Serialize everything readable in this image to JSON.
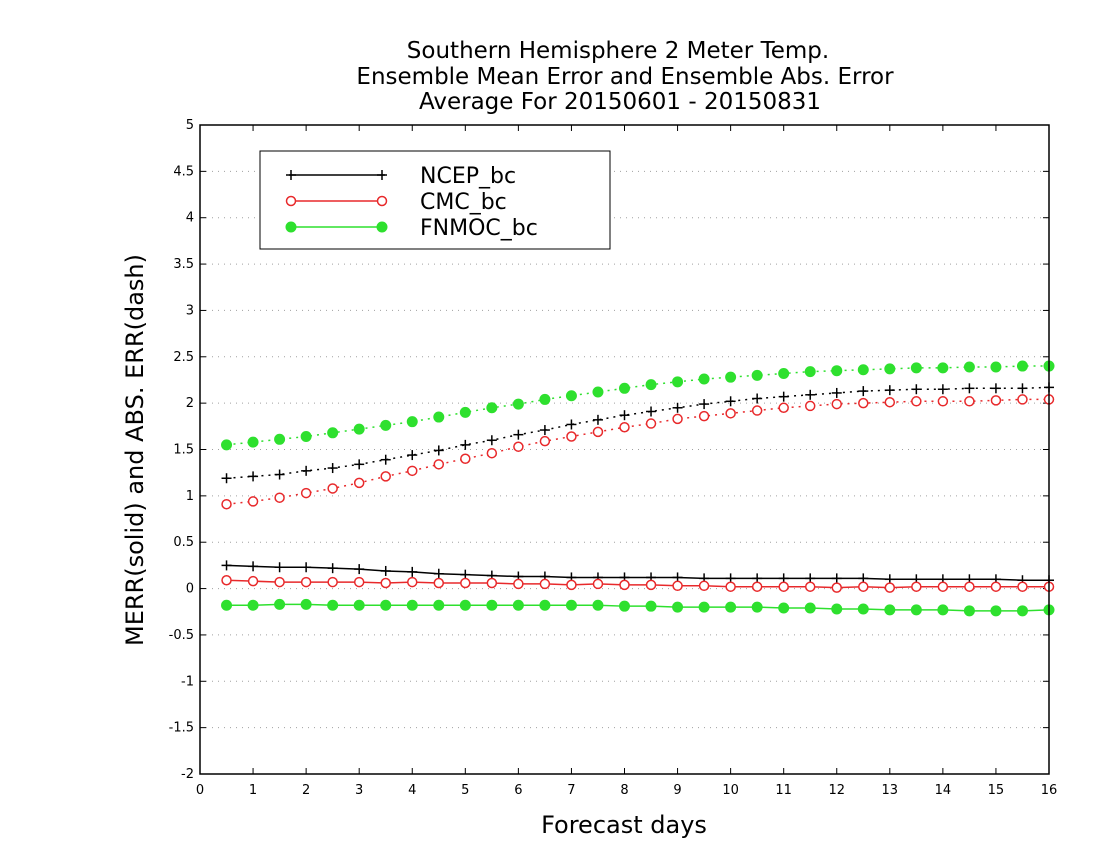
{
  "chart_data": {
    "type": "line",
    "title_lines": [
      "Southern Hemisphere 2 Meter Temp.",
      "Ensemble Mean Error and Ensemble Abs. Error",
      "Average For 20150601 - 20150831"
    ],
    "xlabel": "Forecast days",
    "ylabel": "MERR(solid) and ABS. ERR(dash)",
    "xlim": [
      0,
      16
    ],
    "ylim": [
      -2,
      5
    ],
    "x_ticks": [
      "0",
      "1",
      "2",
      "3",
      "4",
      "5",
      "6",
      "7",
      "8",
      "9",
      "10",
      "11",
      "12",
      "13",
      "14",
      "15",
      "16"
    ],
    "y_ticks": [
      "-2",
      "-1.5",
      "-1",
      "-0.5",
      "0",
      "0.5",
      "1",
      "1.5",
      "2",
      "2.5",
      "3",
      "3.5",
      "4",
      "4.5",
      "5"
    ],
    "grid": "horizontal dotted",
    "legend_position": "top-left",
    "x": [
      0.5,
      1,
      1.5,
      2,
      2.5,
      3,
      3.5,
      4,
      4.5,
      5,
      5.5,
      6,
      6.5,
      7,
      7.5,
      8,
      8.5,
      9,
      9.5,
      10,
      10.5,
      11,
      11.5,
      12,
      12.5,
      13,
      13.5,
      14,
      14.5,
      15,
      15.5,
      16
    ],
    "series": [
      {
        "name": "NCEP_bc",
        "color": "#000000",
        "marker": "plus",
        "merr": [
          0.25,
          0.24,
          0.23,
          0.23,
          0.22,
          0.21,
          0.19,
          0.18,
          0.16,
          0.15,
          0.14,
          0.13,
          0.13,
          0.12,
          0.12,
          0.12,
          0.12,
          0.12,
          0.11,
          0.11,
          0.11,
          0.11,
          0.11,
          0.11,
          0.11,
          0.1,
          0.1,
          0.1,
          0.1,
          0.1,
          0.09,
          0.09
        ],
        "abs_err": [
          1.19,
          1.21,
          1.23,
          1.27,
          1.3,
          1.34,
          1.39,
          1.44,
          1.49,
          1.55,
          1.6,
          1.66,
          1.71,
          1.77,
          1.82,
          1.87,
          1.91,
          1.95,
          1.99,
          2.02,
          2.05,
          2.07,
          2.09,
          2.11,
          2.13,
          2.14,
          2.15,
          2.15,
          2.16,
          2.16,
          2.16,
          2.17
        ]
      },
      {
        "name": "CMC_bc",
        "color": "#e8292b",
        "marker": "open-circle",
        "merr": [
          0.09,
          0.08,
          0.07,
          0.07,
          0.07,
          0.07,
          0.06,
          0.07,
          0.06,
          0.06,
          0.06,
          0.05,
          0.05,
          0.04,
          0.05,
          0.04,
          0.04,
          0.03,
          0.03,
          0.02,
          0.02,
          0.02,
          0.02,
          0.01,
          0.02,
          0.01,
          0.02,
          0.02,
          0.02,
          0.02,
          0.02,
          0.02
        ],
        "abs_err": [
          0.91,
          0.94,
          0.98,
          1.03,
          1.08,
          1.14,
          1.21,
          1.27,
          1.34,
          1.4,
          1.46,
          1.53,
          1.59,
          1.64,
          1.69,
          1.74,
          1.78,
          1.83,
          1.86,
          1.89,
          1.92,
          1.95,
          1.97,
          1.99,
          2.0,
          2.01,
          2.02,
          2.02,
          2.02,
          2.03,
          2.04,
          2.04
        ]
      },
      {
        "name": "FNMOC_bc",
        "color": "#2ee02e",
        "marker": "filled-circle",
        "merr": [
          -0.18,
          -0.18,
          -0.17,
          -0.17,
          -0.18,
          -0.18,
          -0.18,
          -0.18,
          -0.18,
          -0.18,
          -0.18,
          -0.18,
          -0.18,
          -0.18,
          -0.18,
          -0.19,
          -0.19,
          -0.2,
          -0.2,
          -0.2,
          -0.2,
          -0.21,
          -0.21,
          -0.22,
          -0.22,
          -0.23,
          -0.23,
          -0.23,
          -0.24,
          -0.24,
          -0.24,
          -0.23
        ],
        "abs_err": [
          1.55,
          1.58,
          1.61,
          1.64,
          1.68,
          1.72,
          1.76,
          1.8,
          1.85,
          1.9,
          1.95,
          1.99,
          2.04,
          2.08,
          2.12,
          2.16,
          2.2,
          2.23,
          2.26,
          2.28,
          2.3,
          2.32,
          2.34,
          2.35,
          2.36,
          2.37,
          2.38,
          2.38,
          2.39,
          2.39,
          2.4,
          2.4
        ]
      }
    ]
  }
}
